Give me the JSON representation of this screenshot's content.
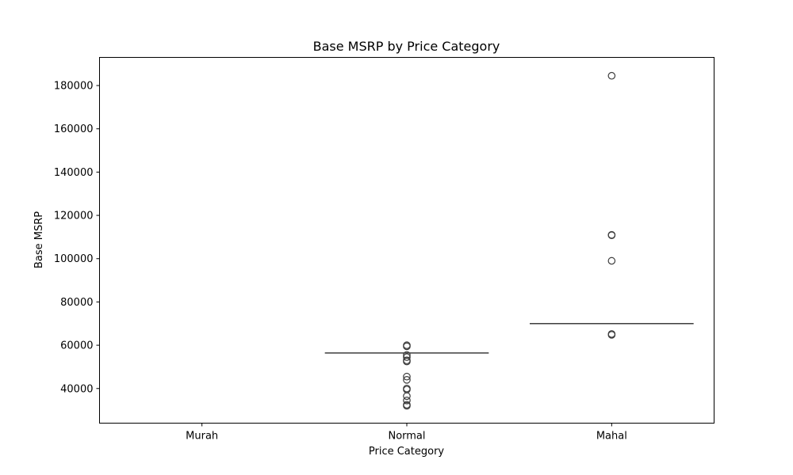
{
  "chart_data": {
    "type": "box",
    "title": "Base MSRP by Price Category",
    "xlabel": "Price Category",
    "ylabel": "Base MSRP",
    "categories": [
      "Murah",
      "Normal",
      "Mahal"
    ],
    "ylim": [
      24000,
      193000
    ],
    "yticks": [
      40000,
      60000,
      80000,
      100000,
      120000,
      140000,
      160000,
      180000
    ],
    "grid": false,
    "legend": "none",
    "boxes": [
      {
        "category": "Murah",
        "median": null,
        "q1": null,
        "q3": null,
        "whisker_low": null,
        "whisker_high": null,
        "outliers": []
      },
      {
        "category": "Normal",
        "median": 56400,
        "q1": 56400,
        "q3": 56400,
        "whisker_low": 56400,
        "whisker_high": 56400,
        "outliers": [
          60000,
          59500,
          55500,
          54500,
          53000,
          52500,
          45500,
          44000,
          40000,
          39500,
          36500,
          34500,
          32500,
          32000
        ]
      },
      {
        "category": "Mahal",
        "median": 70000,
        "q1": 70000,
        "q3": 70000,
        "whisker_low": 70000,
        "whisker_high": 70000,
        "outliers": [
          184500,
          111000,
          110800,
          99000,
          65200,
          64800
        ]
      }
    ],
    "colors": {
      "box_line": "#3d3d3d",
      "outlier_edge": "#3d3d3d",
      "axes": "#000000"
    }
  }
}
